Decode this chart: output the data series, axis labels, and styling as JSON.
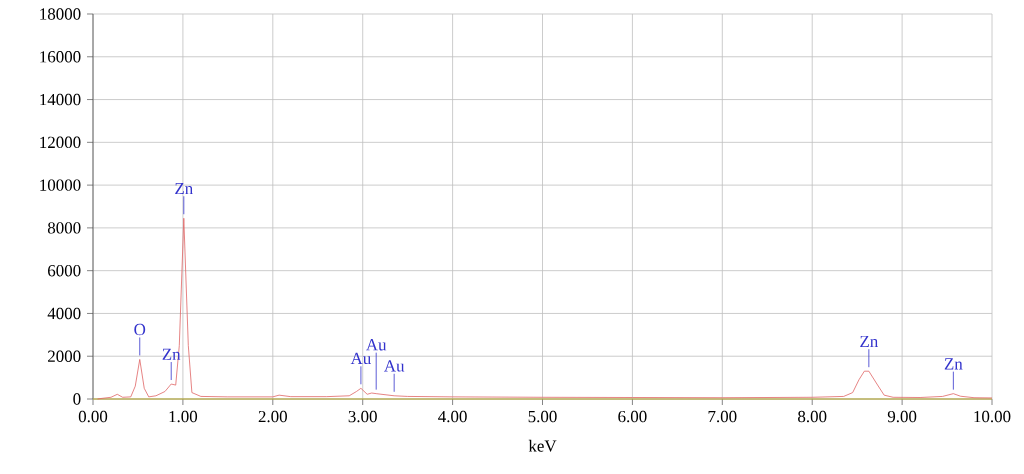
{
  "chart_data": {
    "type": "line",
    "xlabel": "keV",
    "x": [
      0.05,
      0.1,
      0.2,
      0.27,
      0.33,
      0.42,
      0.47,
      0.52,
      0.57,
      0.62,
      0.7,
      0.8,
      0.87,
      0.92,
      0.96,
      1.01,
      1.06,
      1.1,
      1.2,
      1.5,
      2.0,
      2.07,
      2.2,
      2.6,
      2.85,
      2.93,
      2.98,
      3.05,
      3.1,
      3.15,
      3.35,
      3.5,
      4.0,
      5.0,
      6.0,
      7.0,
      8.0,
      8.35,
      8.45,
      8.52,
      8.58,
      8.63,
      8.72,
      8.8,
      8.9,
      9.2,
      9.45,
      9.57,
      9.65,
      9.8,
      10.0
    ],
    "values": [
      0,
      30,
      80,
      220,
      80,
      100,
      600,
      1850,
      500,
      100,
      150,
      350,
      700,
      650,
      2500,
      8450,
      2500,
      300,
      120,
      100,
      100,
      180,
      110,
      110,
      150,
      350,
      500,
      220,
      280,
      250,
      150,
      120,
      100,
      80,
      70,
      60,
      80,
      120,
      300,
      900,
      1300,
      1300,
      700,
      180,
      80,
      70,
      120,
      250,
      130,
      60,
      50
    ],
    "color": "#e06464",
    "xlim": [
      0,
      10
    ],
    "ylim": [
      0,
      18000
    ],
    "xticks": [
      {
        "value": 0,
        "label": "0.00"
      },
      {
        "value": 1,
        "label": "1.00"
      },
      {
        "value": 2,
        "label": "2.00"
      },
      {
        "value": 3,
        "label": "3.00"
      },
      {
        "value": 4,
        "label": "4.00"
      },
      {
        "value": 5,
        "label": "5.00"
      },
      {
        "value": 6,
        "label": "6.00"
      },
      {
        "value": 7,
        "label": "7.00"
      },
      {
        "value": 8,
        "label": "8.00"
      },
      {
        "value": 9,
        "label": "9.00"
      },
      {
        "value": 10,
        "label": "10.00"
      }
    ],
    "yticks": [
      0,
      2000,
      4000,
      6000,
      8000,
      10000,
      12000,
      14000,
      16000,
      18000
    ],
    "grid": true,
    "ref_lines": [
      {
        "axis": "y",
        "value": 0,
        "color": "#f0e040"
      }
    ],
    "annotations": [
      {
        "text": "O",
        "x": 0.52,
        "y": 1850
      },
      {
        "text": "Zn",
        "x": 0.87,
        "y": 700
      },
      {
        "text": "Zn",
        "x": 1.01,
        "y": 8450
      },
      {
        "text": "Au",
        "x": 2.98,
        "y": 500
      },
      {
        "text": "Au",
        "x": 3.15,
        "y": 250
      },
      {
        "text": "Au",
        "x": 3.35,
        "y": 150
      },
      {
        "text": "Zn",
        "x": 8.63,
        "y": 1300
      },
      {
        "text": "Zn",
        "x": 9.57,
        "y": 250
      }
    ]
  }
}
